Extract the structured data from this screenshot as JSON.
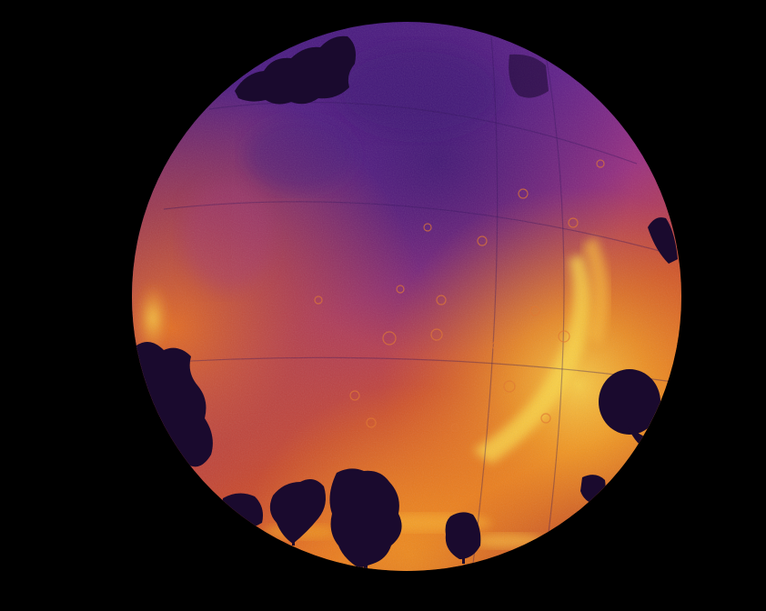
{
  "image": {
    "kind": "all-sky fisheye thermal camera view",
    "colormap": "inferno",
    "colors": {
      "background": "#000000",
      "sky_dark": "#3a1470",
      "sky_mid": "#7a2a8a",
      "sky_warm": "#c4432f",
      "sky_hot": "#f08a1a",
      "sky_brightest": "#fbd84a",
      "tree_silhouette": "#1a0a2e"
    }
  }
}
